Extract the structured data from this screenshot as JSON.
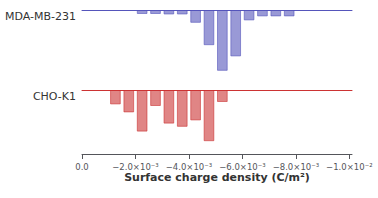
{
  "chart_data": {
    "type": "bar",
    "xlabel": "Surface charge density (C/m²)",
    "xlim": [
      0.0,
      -0.0101
    ],
    "xticks": [
      {
        "value": 0.0,
        "label": "0.0"
      },
      {
        "value": -0.002,
        "label": "−2.0×10⁻³"
      },
      {
        "value": -0.004,
        "label": "−4.0×10⁻³"
      },
      {
        "value": -0.006,
        "label": "−6.0×10⁻³"
      },
      {
        "value": -0.008,
        "label": "−8.0×10⁻³"
      },
      {
        "value": -0.01,
        "label": "−1.0×10⁻²"
      }
    ],
    "ylim": [
      0,
      0.4
    ],
    "tick_labels": "x",
    "grid": false,
    "series": [
      {
        "name": "MDA-MB-231",
        "color": "#5555bb",
        "x": [
          -0.00225,
          -0.00275,
          -0.00325,
          -0.00375,
          -0.00425,
          -0.00475,
          -0.00525,
          -0.00575,
          -0.00625,
          -0.00675,
          -0.00725,
          -0.00775
        ],
        "values": [
          0.025,
          0.025,
          0.028,
          0.028,
          0.08,
          0.22,
          0.38,
          0.29,
          0.065,
          0.04,
          0.04,
          0.04
        ]
      },
      {
        "name": "CHO-K1",
        "color": "#cc3333",
        "x": [
          -0.00125,
          -0.00175,
          -0.00225,
          -0.00275,
          -0.00325,
          -0.00375,
          -0.00425,
          -0.00475,
          -0.00525
        ],
        "values": [
          0.09,
          0.14,
          0.26,
          0.1,
          0.21,
          0.23,
          0.19,
          0.32,
          0.075
        ]
      }
    ]
  }
}
